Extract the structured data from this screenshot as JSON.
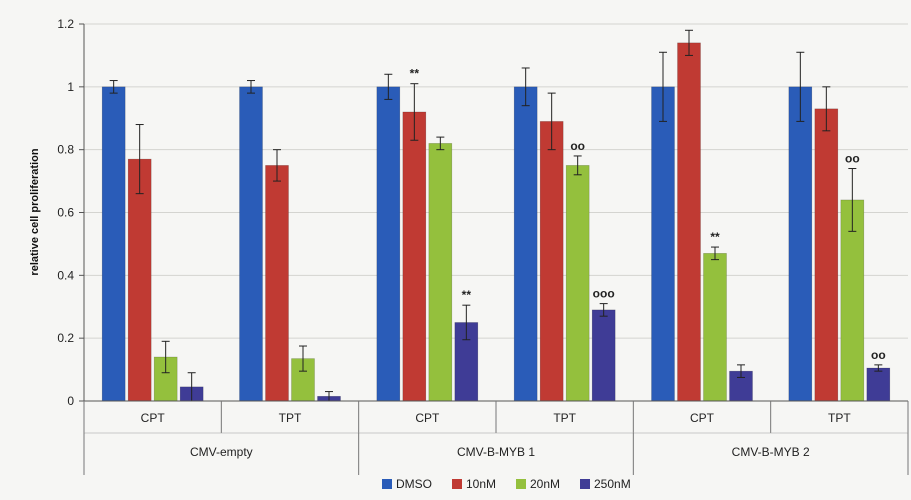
{
  "chart_data": {
    "type": "bar",
    "ylabel": "relative cell proliferation",
    "xlabel": "",
    "ylim": [
      0,
      1.2
    ],
    "yticks": [
      "0",
      "0.2",
      "0.4",
      "0.6",
      "0.8",
      "1",
      "1.2"
    ],
    "grid": true,
    "legend_position": "bottom",
    "categories": [
      "CPT",
      "TPT",
      "CPT",
      "TPT",
      "CPT",
      "TPT"
    ],
    "groups": [
      {
        "label": "CMV-empty",
        "span": 2
      },
      {
        "label": "CMV-B-MYB 1",
        "span": 2
      },
      {
        "label": "CMV-B-MYB 2",
        "span": 2
      }
    ],
    "series": [
      {
        "name": "DMSO",
        "color": "#2a5cb8",
        "values": [
          1.0,
          1.0,
          1.0,
          1.0,
          1.0,
          1.0
        ],
        "errors": [
          0.02,
          0.02,
          0.04,
          0.06,
          0.11,
          0.11
        ]
      },
      {
        "name": "10nM",
        "color": "#c03a33",
        "values": [
          0.77,
          0.75,
          0.92,
          0.89,
          1.14,
          0.93
        ],
        "errors": [
          0.11,
          0.05,
          0.09,
          0.09,
          0.04,
          0.07
        ]
      },
      {
        "name": "20nM",
        "color": "#94c03d",
        "values": [
          0.14,
          0.135,
          0.82,
          0.75,
          0.47,
          0.64
        ],
        "errors": [
          0.05,
          0.04,
          0.02,
          0.03,
          0.02,
          0.1
        ]
      },
      {
        "name": "250nM",
        "color": "#3f3c96",
        "values": [
          0.045,
          0.015,
          0.25,
          0.29,
          0.095,
          0.105
        ],
        "errors": [
          0.045,
          0.015,
          0.055,
          0.02,
          0.02,
          0.01
        ]
      }
    ],
    "annotations": [
      {
        "text": "**",
        "category_index": 2,
        "series_index": 1
      },
      {
        "text": "**",
        "category_index": 2,
        "series_index": 3
      },
      {
        "text": "oo",
        "category_index": 3,
        "series_index": 2
      },
      {
        "text": "ooo",
        "category_index": 3,
        "series_index": 3
      },
      {
        "text": "**",
        "category_index": 4,
        "series_index": 2
      },
      {
        "text": "oo",
        "category_index": 5,
        "series_index": 2
      },
      {
        "text": "oo",
        "category_index": 5,
        "series_index": 3
      }
    ]
  }
}
